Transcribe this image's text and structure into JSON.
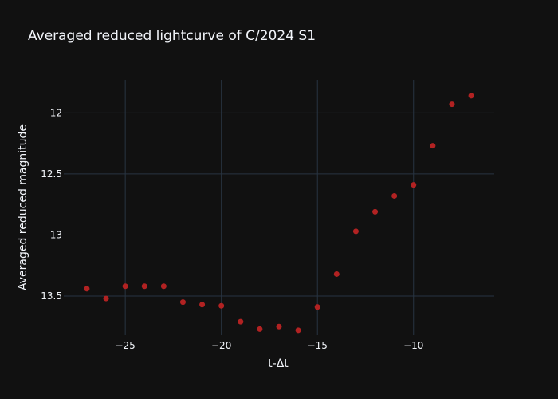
{
  "chart_data": {
    "type": "scatter",
    "title": "Averaged reduced lightcurve of C/2024 S1",
    "xlabel": "t-Δt",
    "ylabel": "Averaged reduced magnitude",
    "xlim": [
      -28.2,
      -5.8
    ],
    "ylim": [
      13.82,
      11.73
    ],
    "y_reversed": true,
    "grid": true,
    "x_ticks": [
      -25,
      -20,
      -15,
      -10
    ],
    "x_tick_labels": [
      "−25",
      "−20",
      "−15",
      "−10"
    ],
    "y_ticks": [
      12,
      12.5,
      13,
      13.5
    ],
    "y_tick_labels": [
      "12",
      "12.5",
      "13",
      "13.5"
    ],
    "series": [
      {
        "color": "#b22222",
        "x": [
          -27,
          -26,
          -25,
          -24,
          -23,
          -22,
          -21,
          -20,
          -19,
          -18,
          -17,
          -16,
          -15,
          -14,
          -13,
          -12,
          -11,
          -10,
          -9,
          -8,
          -7
        ],
        "y": [
          13.44,
          13.52,
          13.42,
          13.42,
          13.42,
          13.55,
          13.57,
          13.58,
          13.71,
          13.77,
          13.75,
          13.78,
          13.59,
          13.32,
          12.97,
          12.81,
          12.68,
          12.59,
          12.27,
          11.93,
          11.86
        ]
      }
    ]
  }
}
